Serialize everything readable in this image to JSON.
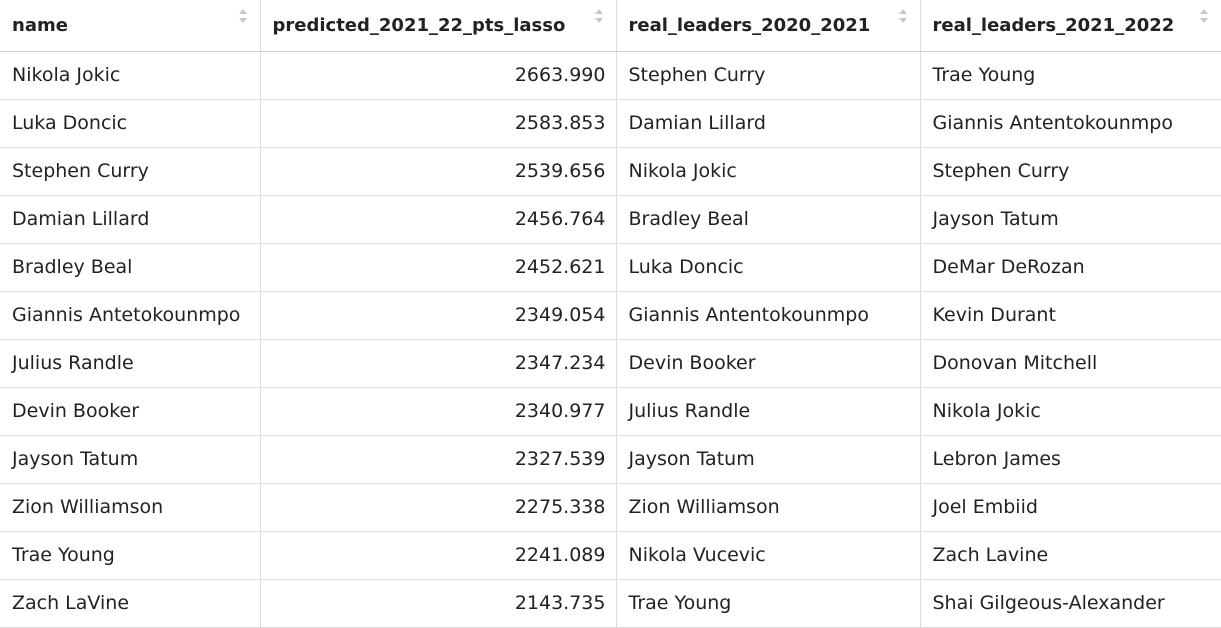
{
  "table": {
    "columns": [
      {
        "label": "name",
        "sort_icon": "sort-arrows-icon"
      },
      {
        "label": "predicted_2021_22_pts_lasso",
        "sort_icon": "sort-arrows-icon"
      },
      {
        "label": "real_leaders_2020_2021",
        "sort_icon": "sort-arrows-icon"
      },
      {
        "label": "real_leaders_2021_2022",
        "sort_icon": "sort-arrows-icon"
      }
    ],
    "rows": [
      {
        "name": "Nikola Jokic",
        "pred": "2663.990",
        "real2021": "Stephen Curry",
        "real2022": "Trae Young"
      },
      {
        "name": "Luka Doncic",
        "pred": "2583.853",
        "real2021": "Damian Lillard",
        "real2022": "Giannis Antentokounmpo"
      },
      {
        "name": "Stephen Curry",
        "pred": "2539.656",
        "real2021": "Nikola Jokic",
        "real2022": "Stephen Curry"
      },
      {
        "name": "Damian Lillard",
        "pred": "2456.764",
        "real2021": "Bradley Beal",
        "real2022": "Jayson Tatum"
      },
      {
        "name": "Bradley Beal",
        "pred": "2452.621",
        "real2021": "Luka Doncic",
        "real2022": "DeMar DeRozan"
      },
      {
        "name": "Giannis Antetokounmpo",
        "pred": "2349.054",
        "real2021": "Giannis Antentokounmpo",
        "real2022": "Kevin Durant"
      },
      {
        "name": "Julius Randle",
        "pred": "2347.234",
        "real2021": "Devin Booker",
        "real2022": "Donovan Mitchell"
      },
      {
        "name": "Devin Booker",
        "pred": "2340.977",
        "real2021": "Julius Randle",
        "real2022": "Nikola Jokic"
      },
      {
        "name": "Jayson Tatum",
        "pred": "2327.539",
        "real2021": "Jayson Tatum",
        "real2022": "Lebron James"
      },
      {
        "name": "Zion Williamson",
        "pred": "2275.338",
        "real2021": "Zion Williamson",
        "real2022": "Joel Embiid"
      },
      {
        "name": "Trae Young",
        "pred": "2241.089",
        "real2021": "Nikola Vucevic",
        "real2022": "Zach Lavine"
      },
      {
        "name": "Zach LaVine",
        "pred": "2143.735",
        "real2021": "Trae Young",
        "real2022": "Shai Gilgeous-Alexander"
      }
    ]
  },
  "colors": {
    "border": "#dcdcdc",
    "sort_icon": "#c8c8c8",
    "text": "#222222"
  }
}
